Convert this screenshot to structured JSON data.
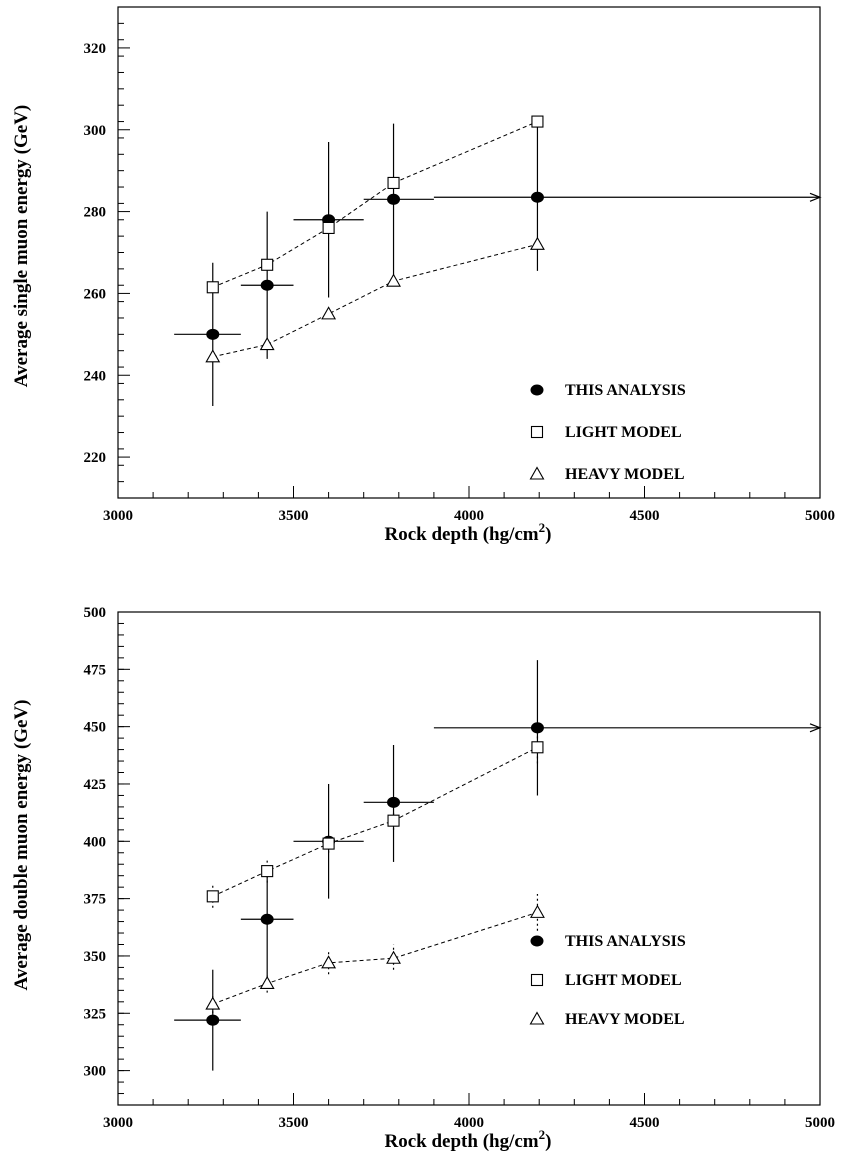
{
  "colors": {
    "axis": "#000000",
    "background": "#ffffff"
  },
  "chart_data": [
    {
      "type": "scatter",
      "title": "",
      "xlabel_main": "Rock depth (hg/cm",
      "xlabel_sup": "2",
      "xlabel_tail": ")",
      "ylabel": "Average single muon energy (GeV)",
      "xlim": [
        3000,
        5000
      ],
      "ylim": [
        210,
        330
      ],
      "xticks": [
        3000,
        3500,
        4000,
        4500,
        5000
      ],
      "yticks": [
        220,
        240,
        260,
        280,
        300,
        320
      ],
      "legend_position": "bottom-right",
      "series": [
        {
          "name": "THIS ANALYSIS",
          "marker": "filled-ellipse",
          "points": [
            {
              "x": 3270,
              "y": 250,
              "xlo": 3160,
              "xhi": 3350,
              "ylo": 232.5,
              "yhi": 267.5
            },
            {
              "x": 3425,
              "y": 262,
              "xlo": 3350,
              "xhi": 3500,
              "ylo": 244,
              "yhi": 280
            },
            {
              "x": 3600,
              "y": 278,
              "xlo": 3500,
              "xhi": 3700,
              "ylo": 259,
              "yhi": 297
            },
            {
              "x": 3785,
              "y": 283,
              "xlo": 3700,
              "xhi": 3900,
              "ylo": 264,
              "yhi": 301.5
            },
            {
              "x": 4195,
              "y": 283.5,
              "xlo": 3900,
              "xhi": 5000,
              "ylo": 265.5,
              "yhi": 303,
              "arrow_right": true
            }
          ]
        },
        {
          "name": "LIGHT MODEL",
          "marker": "open-square",
          "connected": true,
          "points": [
            {
              "x": 3270,
              "y": 261.5
            },
            {
              "x": 3425,
              "y": 267
            },
            {
              "x": 3600,
              "y": 276
            },
            {
              "x": 3785,
              "y": 287
            },
            {
              "x": 4195,
              "y": 302
            }
          ]
        },
        {
          "name": "HEAVY MODEL",
          "marker": "open-triangle",
          "connected": true,
          "points": [
            {
              "x": 3270,
              "y": 244.5
            },
            {
              "x": 3425,
              "y": 247.5
            },
            {
              "x": 3600,
              "y": 255
            },
            {
              "x": 3785,
              "y": 263
            },
            {
              "x": 4195,
              "y": 272
            }
          ]
        }
      ]
    },
    {
      "type": "scatter",
      "title": "",
      "xlabel_main": "Rock depth (hg/cm",
      "xlabel_sup": "2",
      "xlabel_tail": ")",
      "ylabel": "Average double muon energy (GeV)",
      "xlim": [
        3000,
        5000
      ],
      "ylim": [
        285,
        500
      ],
      "xticks": [
        3000,
        3500,
        4000,
        4500,
        5000
      ],
      "yticks": [
        300,
        325,
        350,
        375,
        400,
        425,
        450,
        475,
        500
      ],
      "legend_position": "bottom-right",
      "series": [
        {
          "name": "THIS ANALYSIS",
          "marker": "filled-ellipse",
          "points": [
            {
              "x": 3270,
              "y": 322,
              "xlo": 3160,
              "xhi": 3350,
              "ylo": 300,
              "yhi": 344
            },
            {
              "x": 3425,
              "y": 366,
              "xlo": 3350,
              "xhi": 3500,
              "ylo": 341,
              "yhi": 388
            },
            {
              "x": 3600,
              "y": 400,
              "xlo": 3500,
              "xhi": 3700,
              "ylo": 375,
              "yhi": 425
            },
            {
              "x": 3785,
              "y": 417,
              "xlo": 3700,
              "xhi": 3900,
              "ylo": 391,
              "yhi": 442
            },
            {
              "x": 4195,
              "y": 449.5,
              "xlo": 3900,
              "xhi": 5000,
              "ylo": 420,
              "yhi": 479,
              "arrow_right": true
            }
          ]
        },
        {
          "name": "LIGHT MODEL",
          "marker": "open-square",
          "connected": true,
          "points": [
            {
              "x": 3270,
              "y": 376,
              "sys_lo": 371,
              "sys_hi": 381
            },
            {
              "x": 3425,
              "y": 387,
              "sys_lo": 382,
              "sys_hi": 392
            },
            {
              "x": 3600,
              "y": 399,
              "sys_lo": 395,
              "sys_hi": 403
            },
            {
              "x": 3785,
              "y": 409,
              "sys_lo": 405,
              "sys_hi": 413
            },
            {
              "x": 4195,
              "y": 441,
              "sys_lo": 434,
              "sys_hi": 448
            }
          ]
        },
        {
          "name": "HEAVY MODEL",
          "marker": "open-triangle",
          "connected": true,
          "points": [
            {
              "x": 3270,
              "y": 329,
              "sys_lo": 325,
              "sys_hi": 333
            },
            {
              "x": 3425,
              "y": 338,
              "sys_lo": 334,
              "sys_hi": 342
            },
            {
              "x": 3600,
              "y": 347,
              "sys_lo": 342,
              "sys_hi": 352
            },
            {
              "x": 3785,
              "y": 349,
              "sys_lo": 344,
              "sys_hi": 355
            },
            {
              "x": 4195,
              "y": 369,
              "sys_lo": 361,
              "sys_hi": 377
            }
          ]
        }
      ]
    }
  ]
}
